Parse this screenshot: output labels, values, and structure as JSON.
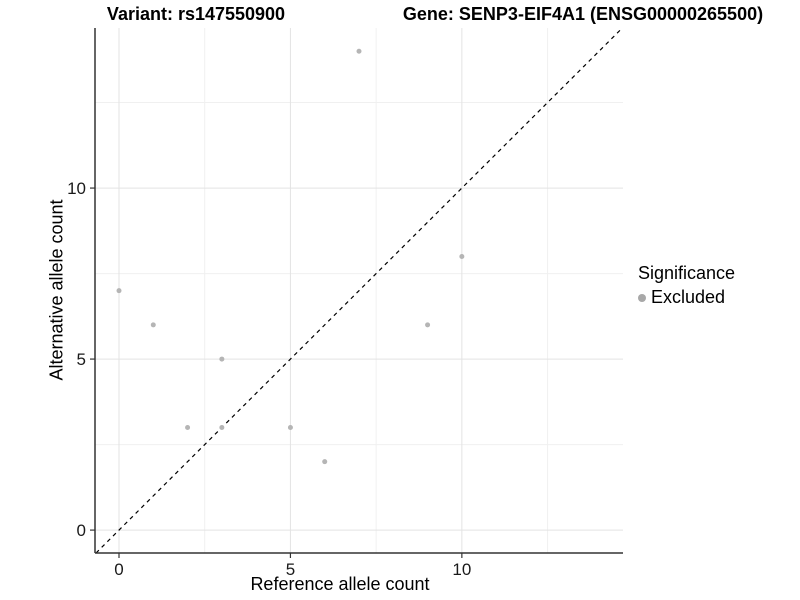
{
  "titles": {
    "variant": "Variant: rs147550900",
    "gene": "Gene: SENP3-EIF4A1 (ENSG00000265500)"
  },
  "chart_data": {
    "type": "scatter",
    "title_left": "Variant: rs147550900",
    "title_right": "Gene: SENP3-EIF4A1 (ENSG00000265500)",
    "xlabel": "Reference allele count",
    "ylabel": "Alternative allele count",
    "xlim": [
      -0.7,
      14.7
    ],
    "ylim": [
      -0.67,
      14.68
    ],
    "x_ticks": [
      0,
      5,
      10
    ],
    "y_ticks": [
      0,
      5,
      10
    ],
    "x_minor_breaks": [
      2.5,
      7.5,
      12.5
    ],
    "y_minor_breaks": [
      2.5,
      7.5,
      12.5
    ],
    "grid": true,
    "identity_line": {
      "type": "dashed",
      "color": "#000000",
      "equation": "y = x"
    },
    "series": [
      {
        "name": "Excluded",
        "color": "#b5b5b5",
        "points": [
          [
            0,
            7
          ],
          [
            1,
            6
          ],
          [
            2,
            3
          ],
          [
            3,
            3
          ],
          [
            3,
            5
          ],
          [
            5,
            3
          ],
          [
            6,
            2
          ],
          [
            7,
            14
          ],
          [
            9,
            6
          ],
          [
            10,
            8
          ]
        ]
      }
    ],
    "legend": {
      "title": "Significance",
      "position": "right",
      "entries": [
        {
          "label": "Excluded",
          "color": "#a8a8a8"
        }
      ]
    }
  },
  "style_colors": {
    "background": "#ffffff",
    "axis_line": "#333333",
    "tick_mark": "#333333",
    "tick_label": "#1a1a1a",
    "grid_major": "#e3e3e3",
    "grid_minor": "#f0f0f0",
    "point": "#b5b5b5"
  }
}
